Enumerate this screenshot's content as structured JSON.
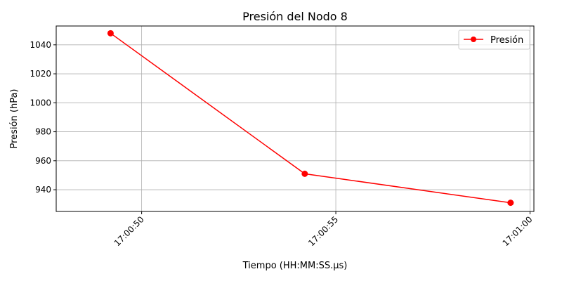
{
  "chart_data": {
    "type": "line",
    "title": "Presión del Nodo 8",
    "xlabel": "Tiempo (HH:MM:SS.µs)",
    "ylabel": "Presión (hPa)",
    "x_type": "time",
    "xlim": [
      "17:00:47.8",
      "17:01:00.1"
    ],
    "ylim": [
      925,
      1053
    ],
    "x_ticks": [
      {
        "value": "17:00:50",
        "label": "17:00:50"
      },
      {
        "value": "17:00:55",
        "label": "17:00:55"
      },
      {
        "value": "17:01:00",
        "label": "17:01:00"
      }
    ],
    "y_ticks": [
      940,
      960,
      980,
      1000,
      1020,
      1040
    ],
    "grid": true,
    "legend": "top-right",
    "series": [
      {
        "name": "Presión",
        "color": "#ff0000",
        "marker": "circle",
        "x": [
          "17:00:49.2",
          "17:00:54.2",
          "17:00:59.5"
        ],
        "y": [
          1048,
          951,
          931
        ]
      }
    ]
  }
}
